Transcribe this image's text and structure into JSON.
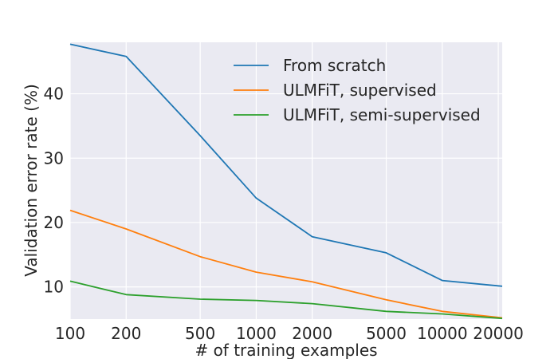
{
  "chart_data": {
    "type": "line",
    "xlabel": "# of training examples",
    "ylabel": "Validation error rate (%)",
    "x_scale": "log",
    "xlim": [
      100,
      21000
    ],
    "ylim": [
      5,
      48
    ],
    "grid": true,
    "legend_position": "top-right",
    "x_ticks": [
      100,
      200,
      500,
      1000,
      2000,
      5000,
      10000,
      20000
    ],
    "x_tick_labels": [
      "100",
      "200",
      "500",
      "1000",
      "2000",
      "5000",
      "10000",
      "20000"
    ],
    "y_ticks": [
      10,
      20,
      30,
      40
    ],
    "y_tick_labels": [
      "10",
      "20",
      "30",
      "40"
    ],
    "series": [
      {
        "name": "From scratch",
        "color": "#1f77b4",
        "x": [
          100,
          200,
          500,
          1000,
          2000,
          5000,
          10000,
          21000
        ],
        "y": [
          47.7,
          45.8,
          33.5,
          23.8,
          17.8,
          15.3,
          11.0,
          10.1
        ]
      },
      {
        "name": "ULMFiT, supervised",
        "color": "#ff7f0e",
        "x": [
          100,
          200,
          500,
          1000,
          2000,
          5000,
          10000,
          21000
        ],
        "y": [
          21.9,
          19.0,
          14.7,
          12.3,
          10.8,
          8.0,
          6.2,
          5.2
        ]
      },
      {
        "name": "ULMFiT, semi-supervised",
        "color": "#2ca02c",
        "x": [
          100,
          200,
          500,
          1000,
          2000,
          5000,
          10000,
          21000
        ],
        "y": [
          10.9,
          8.8,
          8.1,
          7.9,
          7.4,
          6.2,
          5.8,
          5.1
        ]
      }
    ]
  }
}
